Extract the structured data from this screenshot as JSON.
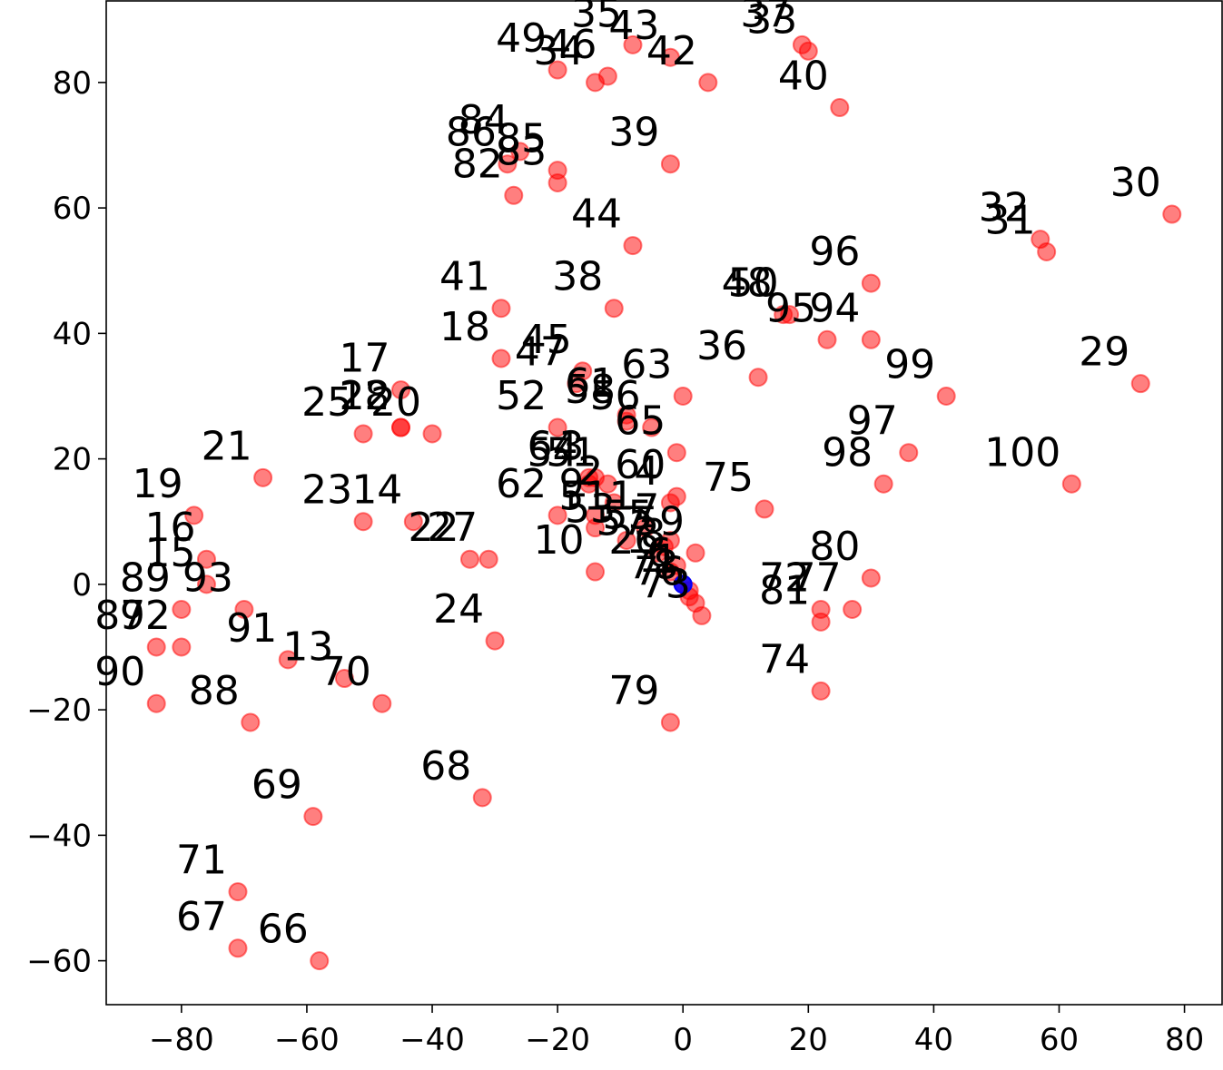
{
  "chart_data": {
    "type": "scatter",
    "title": "",
    "xlabel": "",
    "ylabel": "",
    "xlim": [
      -92,
      86
    ],
    "ylim": [
      -67,
      93
    ],
    "xticks": [
      -80,
      -60,
      -40,
      -20,
      0,
      20,
      40,
      60,
      80
    ],
    "yticks": [
      -60,
      -40,
      -20,
      0,
      20,
      40,
      60,
      80
    ],
    "xtick_labels": [
      "−80",
      "−60",
      "−40",
      "−20",
      "0",
      "20",
      "40",
      "60",
      "80"
    ],
    "ytick_labels": [
      "−60",
      "−40",
      "−20",
      "0",
      "20",
      "40",
      "60",
      "80"
    ],
    "grid": false,
    "point_color": "#ff0000",
    "origin_color": "#0000ff",
    "origin": {
      "x": 0,
      "y": 0
    },
    "points": [
      {
        "label": "1",
        "x": 1,
        "y": -1
      },
      {
        "label": "2",
        "x": -11,
        "y": 13
      },
      {
        "label": "3",
        "x": -14,
        "y": 17
      },
      {
        "label": "4",
        "x": -2,
        "y": 13
      },
      {
        "label": "5",
        "x": -14,
        "y": 9
      },
      {
        "label": "6",
        "x": 0,
        "y": 0
      },
      {
        "label": "7",
        "x": -2,
        "y": 7
      },
      {
        "label": "8",
        "x": -1,
        "y": 3
      },
      {
        "label": "9",
        "x": -14,
        "y": 11
      },
      {
        "label": "10",
        "x": -14,
        "y": 2
      },
      {
        "label": "11",
        "x": -6,
        "y": 9
      },
      {
        "label": "12",
        "x": -45,
        "y": 25
      },
      {
        "label": "13",
        "x": -54,
        "y": -15
      },
      {
        "label": "14",
        "x": -43,
        "y": 10
      },
      {
        "label": "15",
        "x": -76,
        "y": 0
      },
      {
        "label": "16",
        "x": -76,
        "y": 4
      },
      {
        "label": "17",
        "x": -45,
        "y": 31
      },
      {
        "label": "18",
        "x": -29,
        "y": 36
      },
      {
        "label": "19",
        "x": -78,
        "y": 11
      },
      {
        "label": "20",
        "x": -40,
        "y": 24
      },
      {
        "label": "21",
        "x": -67,
        "y": 17
      },
      {
        "label": "22",
        "x": -34,
        "y": 4
      },
      {
        "label": "23",
        "x": -51,
        "y": 10
      },
      {
        "label": "24",
        "x": -30,
        "y": -9
      },
      {
        "label": "25",
        "x": -51,
        "y": 24
      },
      {
        "label": "26",
        "x": -2,
        "y": 2
      },
      {
        "label": "27",
        "x": -31,
        "y": 4
      },
      {
        "label": "28",
        "x": -45,
        "y": 25
      },
      {
        "label": "29",
        "x": 73,
        "y": 32
      },
      {
        "label": "30",
        "x": 78,
        "y": 59
      },
      {
        "label": "31",
        "x": 58,
        "y": 53
      },
      {
        "label": "32",
        "x": 57,
        "y": 55
      },
      {
        "label": "33",
        "x": 20,
        "y": 85
      },
      {
        "label": "34",
        "x": -14,
        "y": 80
      },
      {
        "label": "35",
        "x": -8,
        "y": 86
      },
      {
        "label": "36",
        "x": 12,
        "y": 33
      },
      {
        "label": "37",
        "x": 19,
        "y": 86
      },
      {
        "label": "38",
        "x": -11,
        "y": 44
      },
      {
        "label": "39",
        "x": -2,
        "y": 67
      },
      {
        "label": "40",
        "x": 25,
        "y": 76
      },
      {
        "label": "41",
        "x": -29,
        "y": 44
      },
      {
        "label": "42",
        "x": 4,
        "y": 80
      },
      {
        "label": "43",
        "x": -2,
        "y": 84
      },
      {
        "label": "44",
        "x": -8,
        "y": 54
      },
      {
        "label": "45",
        "x": -16,
        "y": 34
      },
      {
        "label": "46",
        "x": -12,
        "y": 81
      },
      {
        "label": "47",
        "x": -17,
        "y": 32
      },
      {
        "label": "48",
        "x": 16,
        "y": 43
      },
      {
        "label": "49",
        "x": -20,
        "y": 82
      },
      {
        "label": "50",
        "x": 17,
        "y": 43
      },
      {
        "label": "51",
        "x": -12,
        "y": 16
      },
      {
        "label": "52",
        "x": -20,
        "y": 25
      },
      {
        "label": "53",
        "x": -9,
        "y": 7
      },
      {
        "label": "54",
        "x": -15,
        "y": 16
      },
      {
        "label": "55",
        "x": -3,
        "y": 6
      },
      {
        "label": "56",
        "x": -5,
        "y": 25
      },
      {
        "label": "57",
        "x": -4,
        "y": 5
      },
      {
        "label": "58",
        "x": -9,
        "y": 26
      },
      {
        "label": "59",
        "x": 2,
        "y": 5
      },
      {
        "label": "60",
        "x": -1,
        "y": 14
      },
      {
        "label": "61",
        "x": -9,
        "y": 27
      },
      {
        "label": "62",
        "x": -20,
        "y": 11
      },
      {
        "label": "63",
        "x": 0,
        "y": 30
      },
      {
        "label": "64",
        "x": -15,
        "y": 17
      },
      {
        "label": "65",
        "x": -1,
        "y": 21
      },
      {
        "label": "66",
        "x": -58,
        "y": -60
      },
      {
        "label": "67",
        "x": -71,
        "y": -58
      },
      {
        "label": "68",
        "x": -32,
        "y": -34
      },
      {
        "label": "69",
        "x": -59,
        "y": -37
      },
      {
        "label": "70",
        "x": -48,
        "y": -19
      },
      {
        "label": "71",
        "x": -71,
        "y": -49
      },
      {
        "label": "72",
        "x": 22,
        "y": -4
      },
      {
        "label": "73",
        "x": 3,
        "y": -5
      },
      {
        "label": "74",
        "x": 22,
        "y": -17
      },
      {
        "label": "75",
        "x": 13,
        "y": 12
      },
      {
        "label": "76",
        "x": 2,
        "y": -3
      },
      {
        "label": "77",
        "x": 27,
        "y": -4
      },
      {
        "label": "78",
        "x": 1,
        "y": -2
      },
      {
        "label": "79",
        "x": -2,
        "y": -22
      },
      {
        "label": "80",
        "x": 30,
        "y": 1
      },
      {
        "label": "81",
        "x": 22,
        "y": -6
      },
      {
        "label": "82",
        "x": -27,
        "y": 62
      },
      {
        "label": "83",
        "x": -20,
        "y": 64
      },
      {
        "label": "84",
        "x": -26,
        "y": 69
      },
      {
        "label": "85",
        "x": -20,
        "y": 66
      },
      {
        "label": "86",
        "x": -28,
        "y": 67
      },
      {
        "label": "87",
        "x": -84,
        "y": -10
      },
      {
        "label": "88",
        "x": -69,
        "y": -22
      },
      {
        "label": "89",
        "x": -80,
        "y": -4
      },
      {
        "label": "90",
        "x": -84,
        "y": -19
      },
      {
        "label": "91",
        "x": -63,
        "y": -12
      },
      {
        "label": "92",
        "x": -80,
        "y": -10
      },
      {
        "label": "93",
        "x": -70,
        "y": -4
      },
      {
        "label": "94",
        "x": 30,
        "y": 39
      },
      {
        "label": "95",
        "x": 23,
        "y": 39
      },
      {
        "label": "96",
        "x": 30,
        "y": 48
      },
      {
        "label": "97",
        "x": 36,
        "y": 21
      },
      {
        "label": "98",
        "x": 32,
        "y": 16
      },
      {
        "label": "99",
        "x": 42,
        "y": 30
      },
      {
        "label": "100",
        "x": 62,
        "y": 16
      }
    ]
  }
}
